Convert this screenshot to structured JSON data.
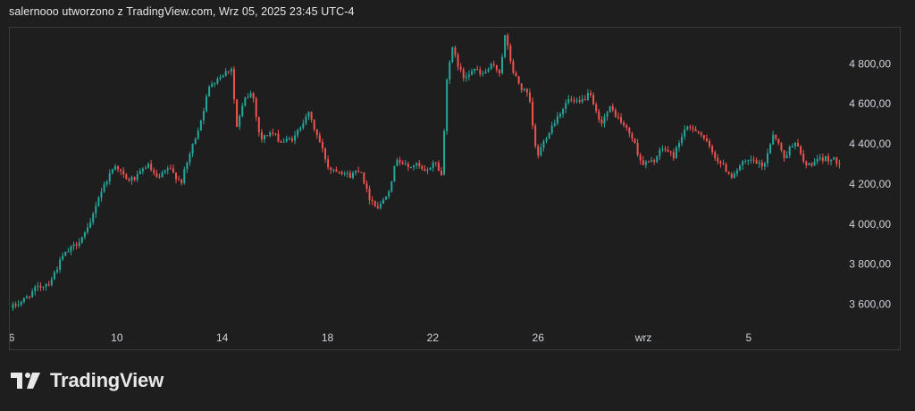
{
  "header": {
    "caption": "salernooo utworzono z TradingView.com, Wrz 05, 2025 23:45 UTC-4"
  },
  "brand": {
    "name": "TradingView",
    "logo_icon": "tradingview-logo-icon"
  },
  "colors": {
    "background": "#1e1e1e",
    "up": "#26a69a",
    "down": "#ef5350",
    "text": "#d1d4dc",
    "border": "#3a3a3a"
  },
  "chart_data": {
    "type": "candlestick",
    "title": "",
    "xlabel": "",
    "ylabel": "",
    "ylim": [
      3500,
      4980
    ],
    "y_ticks": [
      {
        "value": 3600,
        "label": "3 600,00"
      },
      {
        "value": 3800,
        "label": "3 800,00"
      },
      {
        "value": 4000,
        "label": "4 000,00"
      },
      {
        "value": 4200,
        "label": "4 200,00"
      },
      {
        "value": 4400,
        "label": "4 400,00"
      },
      {
        "value": 4600,
        "label": "4 600,00"
      },
      {
        "value": 4800,
        "label": "4 800,00"
      }
    ],
    "x_ticks": [
      {
        "day": 6,
        "label": "6"
      },
      {
        "day": 10,
        "label": "10"
      },
      {
        "day": 14,
        "label": "14"
      },
      {
        "day": 18,
        "label": "18"
      },
      {
        "day": 22,
        "label": "22"
      },
      {
        "day": 26,
        "label": "26"
      },
      {
        "day": 30,
        "label": "wrz"
      },
      {
        "day": 34,
        "label": "5"
      }
    ],
    "xlim": [
      6,
      37.5
    ],
    "grid": false,
    "price_path": [
      [
        6.0,
        3580
      ],
      [
        6.5,
        3620
      ],
      [
        7.0,
        3680
      ],
      [
        7.5,
        3710
      ],
      [
        8.0,
        3840
      ],
      [
        8.5,
        3900
      ],
      [
        9.0,
        3980
      ],
      [
        9.3,
        4120
      ],
      [
        9.7,
        4230
      ],
      [
        10.0,
        4300
      ],
      [
        10.4,
        4220
      ],
      [
        10.8,
        4230
      ],
      [
        11.2,
        4300
      ],
      [
        11.6,
        4220
      ],
      [
        12.0,
        4280
      ],
      [
        12.5,
        4210
      ],
      [
        12.8,
        4340
      ],
      [
        13.2,
        4500
      ],
      [
        13.6,
        4700
      ],
      [
        14.0,
        4740
      ],
      [
        14.4,
        4780
      ],
      [
        14.6,
        4480
      ],
      [
        14.9,
        4620
      ],
      [
        15.2,
        4660
      ],
      [
        15.5,
        4420
      ],
      [
        15.9,
        4460
      ],
      [
        16.3,
        4410
      ],
      [
        16.8,
        4430
      ],
      [
        17.3,
        4560
      ],
      [
        17.7,
        4430
      ],
      [
        18.1,
        4280
      ],
      [
        18.5,
        4270
      ],
      [
        18.9,
        4240
      ],
      [
        19.3,
        4280
      ],
      [
        19.6,
        4140
      ],
      [
        20.0,
        4080
      ],
      [
        20.4,
        4180
      ],
      [
        20.7,
        4330
      ],
      [
        21.1,
        4280
      ],
      [
        21.4,
        4300
      ],
      [
        21.8,
        4250
      ],
      [
        22.1,
        4320
      ],
      [
        22.4,
        4240
      ],
      [
        22.6,
        4760
      ],
      [
        22.8,
        4870
      ],
      [
        23.2,
        4730
      ],
      [
        23.6,
        4780
      ],
      [
        23.9,
        4740
      ],
      [
        24.3,
        4790
      ],
      [
        24.6,
        4760
      ],
      [
        24.8,
        4940
      ],
      [
        25.1,
        4760
      ],
      [
        25.4,
        4680
      ],
      [
        25.7,
        4640
      ],
      [
        26.0,
        4330
      ],
      [
        26.4,
        4450
      ],
      [
        26.8,
        4540
      ],
      [
        27.2,
        4620
      ],
      [
        27.6,
        4600
      ],
      [
        28.0,
        4650
      ],
      [
        28.4,
        4500
      ],
      [
        28.8,
        4580
      ],
      [
        29.2,
        4510
      ],
      [
        29.6,
        4440
      ],
      [
        30.0,
        4300
      ],
      [
        30.4,
        4310
      ],
      [
        30.8,
        4380
      ],
      [
        31.2,
        4340
      ],
      [
        31.6,
        4470
      ],
      [
        32.0,
        4480
      ],
      [
        32.3,
        4440
      ],
      [
        32.6,
        4370
      ],
      [
        33.0,
        4300
      ],
      [
        33.4,
        4240
      ],
      [
        33.8,
        4300
      ],
      [
        34.2,
        4320
      ],
      [
        34.6,
        4280
      ],
      [
        35.0,
        4460
      ],
      [
        35.4,
        4330
      ],
      [
        35.8,
        4420
      ],
      [
        36.2,
        4290
      ],
      [
        36.6,
        4310
      ],
      [
        37.0,
        4330
      ],
      [
        37.5,
        4310
      ]
    ]
  }
}
